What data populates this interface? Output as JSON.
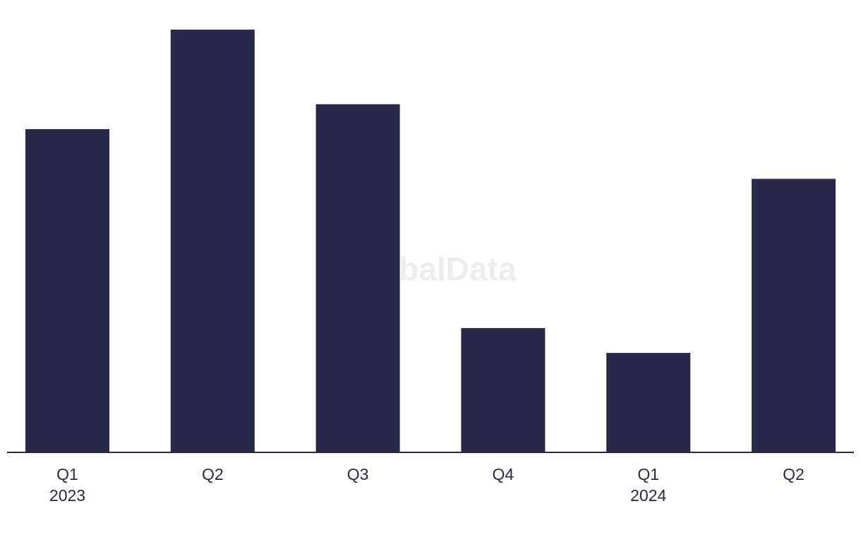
{
  "chart_data": {
    "type": "bar",
    "categories": [
      [
        "Q1",
        "2023"
      ],
      [
        "Q2"
      ],
      [
        "Q3"
      ],
      [
        "Q4"
      ],
      [
        "Q1",
        "2024"
      ],
      [
        "Q2"
      ]
    ],
    "values": [
      13,
      17,
      14,
      5,
      4,
      11
    ],
    "color": "#29294a",
    "ylim": [
      0,
      17
    ],
    "watermark": "GlobalData"
  }
}
